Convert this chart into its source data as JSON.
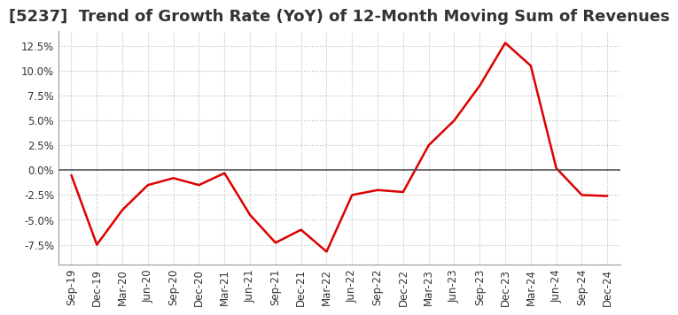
{
  "title": "[5237]  Trend of Growth Rate (YoY) of 12-Month Moving Sum of Revenues",
  "x_labels": [
    "Sep-19",
    "Dec-19",
    "Mar-20",
    "Jun-20",
    "Sep-20",
    "Dec-20",
    "Mar-21",
    "Jun-21",
    "Sep-21",
    "Dec-21",
    "Mar-22",
    "Jun-22",
    "Sep-22",
    "Dec-22",
    "Mar-23",
    "Jun-23",
    "Sep-23",
    "Dec-23",
    "Mar-24",
    "Jun-24",
    "Sep-24",
    "Dec-24"
  ],
  "y_values": [
    -0.5,
    -7.5,
    -4.0,
    -1.5,
    -0.8,
    -1.5,
    -0.3,
    -4.5,
    -7.3,
    -6.0,
    -8.2,
    -2.5,
    -2.0,
    -2.2,
    2.5,
    5.0,
    8.5,
    12.8,
    10.5,
    0.2,
    -2.5,
    -2.6
  ],
  "line_color": "#dd0000",
  "line_width": 1.8,
  "background_color": "#ffffff",
  "grid_color": "#bbbbbb",
  "zero_line_color": "#555555",
  "ylim": [
    -9.5,
    14.0
  ],
  "yticks": [
    -7.5,
    -5.0,
    -2.5,
    0.0,
    2.5,
    5.0,
    7.5,
    10.0,
    12.5
  ],
  "title_fontsize": 13,
  "tick_fontsize": 8.5,
  "title_color": "#333333"
}
